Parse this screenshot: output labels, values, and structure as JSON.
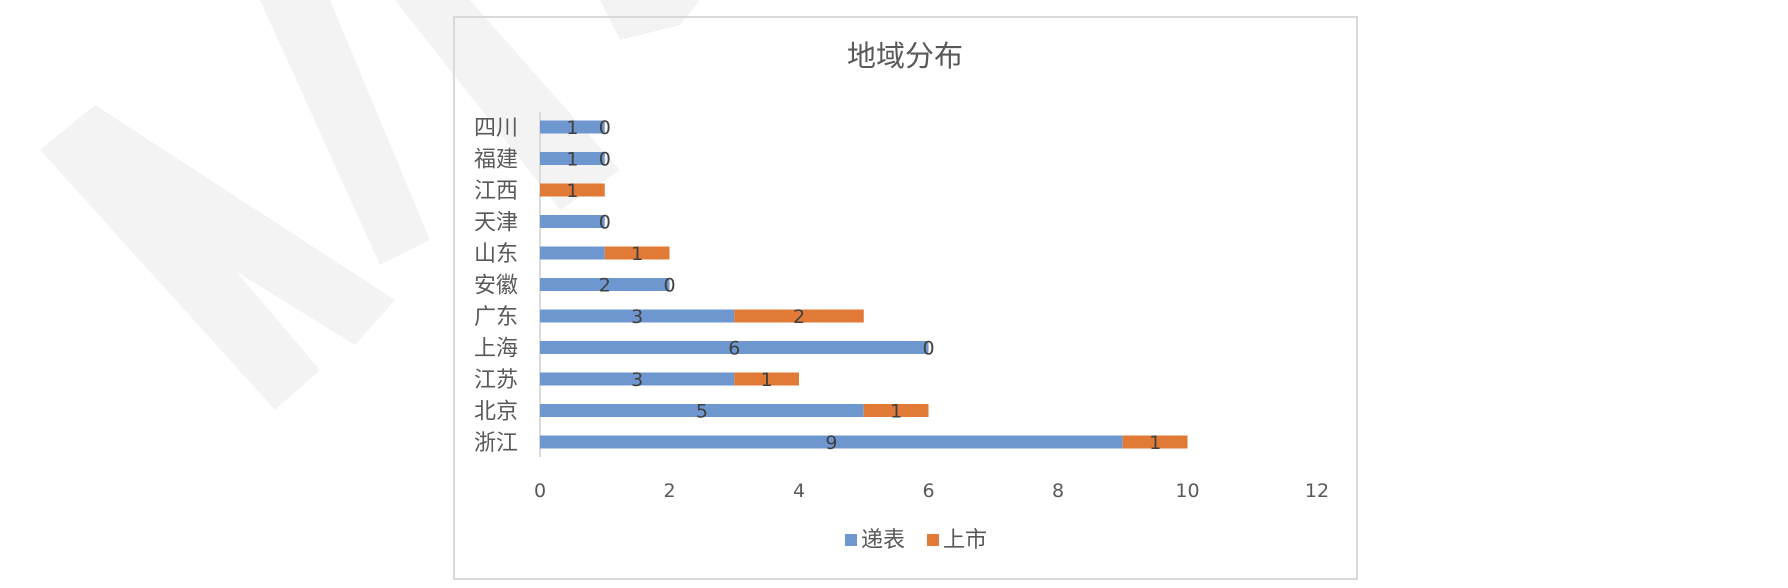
{
  "chart_data": {
    "type": "bar",
    "orientation": "horizontal",
    "stacked": true,
    "title": "地域分布",
    "categories": [
      "浙江",
      "北京",
      "江苏",
      "上海",
      "广东",
      "安徽",
      "山东",
      "天津",
      "江西",
      "福建",
      "四川"
    ],
    "series": [
      {
        "name": "递表",
        "color": "#6e97cf",
        "values": [
          9,
          5,
          3,
          6,
          3,
          2,
          1,
          1,
          0,
          1,
          1
        ]
      },
      {
        "name": "上市",
        "color": "#e07a36",
        "values": [
          1,
          1,
          1,
          0,
          2,
          0,
          1,
          0,
          1,
          0,
          0
        ]
      }
    ],
    "data_labels": {
      "递表": [
        "9",
        "5",
        "3",
        "6",
        "3",
        "2",
        "",
        "",
        "",
        "1",
        "1"
      ],
      "上市": [
        "1",
        "1",
        "1",
        "0",
        "2",
        "0",
        "1",
        "0",
        "1",
        "0",
        "0"
      ]
    },
    "xlim": [
      0,
      12
    ],
    "x_ticks": [
      0,
      2,
      4,
      6,
      8,
      10,
      12
    ],
    "grid": false,
    "legend_position": "bottom"
  }
}
